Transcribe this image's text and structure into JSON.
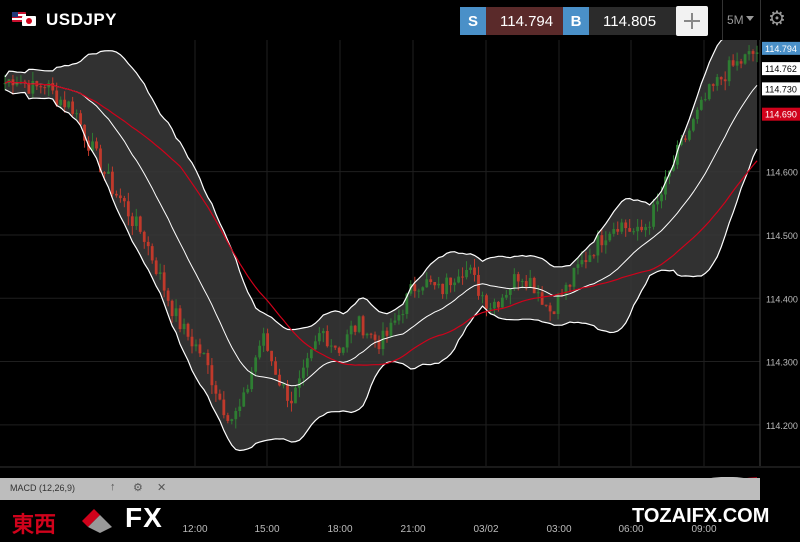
{
  "header": {
    "symbol": "USDJPY",
    "sell_tag": "S",
    "sell_price": "114.794",
    "buy_tag": "B",
    "buy_price": "114.805",
    "timeframe": "5M",
    "icons": [
      "us-flag-icon",
      "jp-flag-icon",
      "crosshair-icon",
      "chevron-down-icon",
      "gear-icon"
    ]
  },
  "watermark": {
    "brand_cjk": "東西",
    "brand_fx": "FX",
    "site": "TOZAIFX.COM"
  },
  "chart_data": {
    "type": "candlestick",
    "title": "",
    "xlabel": "",
    "ylabel": "",
    "x_ticks": [
      "12:00",
      "15:00",
      "18:00",
      "21:00",
      "03/02",
      "03:00",
      "06:00",
      "09:00"
    ],
    "y_ticks": [
      114.2,
      114.3,
      114.4,
      114.5,
      114.6
    ],
    "y_tick_labels": [
      "114.200",
      "114.300",
      "114.400",
      "114.500",
      "114.600"
    ],
    "ylim": [
      114.135,
      114.808
    ],
    "grid": true,
    "price_labels": [
      {
        "value": 114.794,
        "text": "114.794",
        "color": "#4a90c8"
      },
      {
        "value": 114.762,
        "text": "114.762",
        "color": "#ffffff"
      },
      {
        "value": 114.73,
        "text": "114.730",
        "color": "#ffffff"
      },
      {
        "value": 114.69,
        "text": "114.690",
        "color": "#d0021b"
      }
    ],
    "close_path": [
      114.74,
      114.75,
      114.74,
      114.73,
      114.74,
      114.72,
      114.71,
      114.7,
      114.66,
      114.63,
      114.6,
      114.57,
      114.55,
      114.52,
      114.5,
      114.46,
      114.42,
      114.38,
      114.35,
      114.33,
      114.31,
      114.27,
      114.23,
      114.21,
      114.23,
      114.29,
      114.34,
      114.3,
      114.26,
      114.24,
      114.27,
      114.31,
      114.35,
      114.33,
      114.32,
      114.35,
      114.36,
      114.34,
      114.33,
      114.35,
      114.38,
      114.41,
      114.43,
      114.42,
      114.41,
      114.43,
      114.45,
      114.44,
      114.41,
      114.39,
      114.4,
      114.42,
      114.44,
      114.43,
      114.41,
      114.38,
      114.4,
      114.42,
      114.45,
      114.47,
      114.49,
      114.51,
      114.52,
      114.51,
      114.5,
      114.52,
      114.55,
      114.59,
      114.63,
      114.66,
      114.69,
      114.72,
      114.74,
      114.76,
      114.77,
      114.78,
      114.79
    ],
    "indicators": [
      {
        "name": "MACD (12,26,9)",
        "type": "macd",
        "signal_color": "#d0021b"
      }
    ],
    "colors": {
      "up": "#2e7d32",
      "down": "#c0392b",
      "band": "#ffffff",
      "sma": "#d0021b"
    }
  }
}
